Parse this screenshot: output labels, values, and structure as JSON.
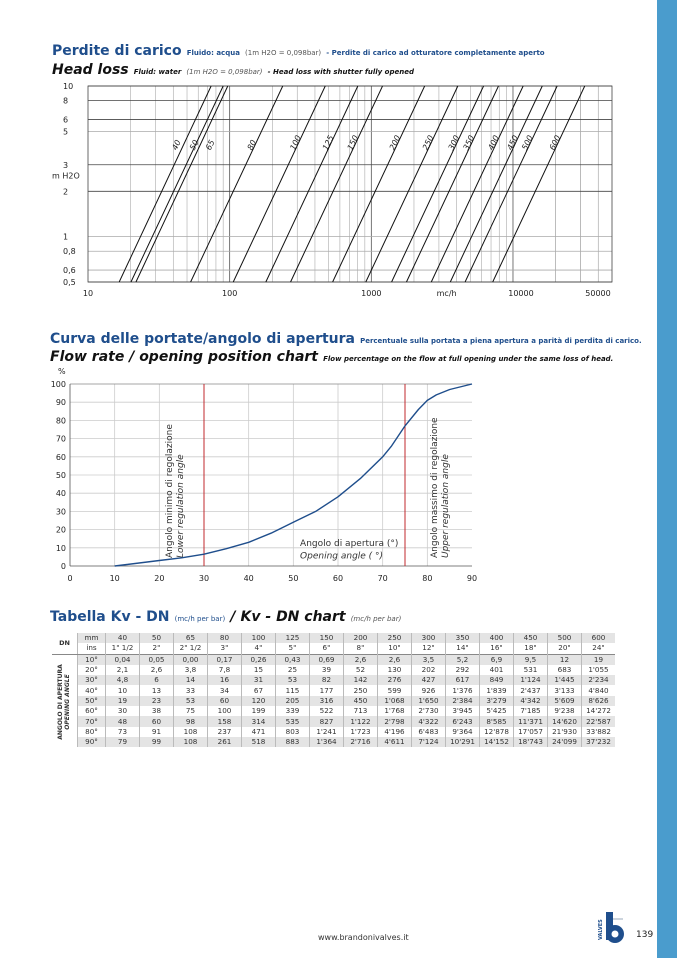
{
  "head_loss": {
    "title_it": "Perdite di carico",
    "sub_it_1": "Fluido: acqua",
    "sub_it_2": "(1m H2O = 0,098bar)",
    "sub_it_3": "- Perdite di carico ad otturatore completamente aperto",
    "title_en": "Head loss",
    "sub_en_1": "Fluid: water",
    "sub_en_2": "(1m H2O = 0,098bar)",
    "sub_en_3": "- Head loss with shutter fully opened"
  },
  "flow_chart": {
    "title_it": "Curva delle portate/angolo di apertura",
    "sub_it": "Percentuale sulla portata a piena apertura a parità di perdita di carico.",
    "title_en": "Flow rate / opening position chart",
    "sub_en": "Flow percentage on the flow at full opening under the same loss of head."
  },
  "chart_data": [
    {
      "type": "line",
      "title": "Head loss",
      "xlabel": "mc/h",
      "ylabel": "m H2O",
      "xscale": "log",
      "yscale": "log",
      "xlim": [
        10,
        50000
      ],
      "ylim": [
        0.5,
        10
      ],
      "x_ticks": [
        "10",
        "100",
        "1000",
        "10000",
        "50000"
      ],
      "y_ticks": [
        "10",
        "8",
        "6",
        "5",
        "3",
        "2",
        "1",
        "0,8",
        "0,6",
        "0,5"
      ],
      "y_tick_values": [
        10,
        8,
        6,
        5,
        3,
        2,
        1,
        0.8,
        0.6,
        0.5
      ],
      "grid": true,
      "series": [
        {
          "name": "40",
          "flow_at_0_5": 16.6,
          "flow_at_10": 74
        },
        {
          "name": "50",
          "flow_at_0_5": 20.1,
          "flow_at_10": 90
        },
        {
          "name": "65",
          "flow_at_0_5": 21.8,
          "flow_at_10": 97
        },
        {
          "name": "80",
          "flow_at_0_5": 53,
          "flow_at_10": 237
        },
        {
          "name": "100",
          "flow_at_0_5": 106,
          "flow_at_10": 473
        },
        {
          "name": "125",
          "flow_at_0_5": 180,
          "flow_at_10": 803
        },
        {
          "name": "150",
          "flow_at_0_5": 269,
          "flow_at_10": 1200
        },
        {
          "name": "200",
          "flow_at_0_5": 533,
          "flow_at_10": 2380
        },
        {
          "name": "250",
          "flow_at_0_5": 914,
          "flow_at_10": 4080
        },
        {
          "name": "300",
          "flow_at_0_5": 1390,
          "flow_at_10": 6200
        },
        {
          "name": "350",
          "flow_at_0_5": 1770,
          "flow_at_10": 7900
        },
        {
          "name": "400",
          "flow_at_0_5": 2650,
          "flow_at_10": 11800
        },
        {
          "name": "450",
          "flow_at_0_5": 3610,
          "flow_at_10": 16100
        },
        {
          "name": "500",
          "flow_at_0_5": 4590,
          "flow_at_10": 20500
        },
        {
          "name": "600",
          "flow_at_0_5": 7190,
          "flow_at_10": 32100
        }
      ]
    },
    {
      "type": "line",
      "title": "Flow rate / opening position chart",
      "ylabel": "%",
      "xlim": [
        0,
        90
      ],
      "ylim": [
        0,
        100
      ],
      "x_ticks": [
        0,
        10,
        20,
        30,
        40,
        50,
        60,
        70,
        80,
        90
      ],
      "y_ticks": [
        0,
        10,
        20,
        30,
        40,
        50,
        60,
        70,
        80,
        90,
        100
      ],
      "grid": true,
      "x": [
        10,
        20,
        25,
        30,
        35,
        40,
        45,
        50,
        55,
        60,
        65,
        70,
        72,
        75,
        78,
        80,
        82,
        85,
        90
      ],
      "y": [
        0,
        3,
        4.5,
        6.5,
        9.5,
        13,
        18,
        24,
        30,
        38,
        48,
        60,
        66,
        77,
        86,
        91,
        94,
        97,
        100
      ],
      "line_color": "#1f4e8c",
      "markers": [
        {
          "x": 30,
          "label_it": "Angolo minimo di regolazione",
          "label_en": "Lower regulation angle",
          "color": "#c0282d"
        },
        {
          "x": 75,
          "label_it": "Angolo massimo di regolazione",
          "label_en": "Upper regulation angle",
          "color": "#c0282d"
        }
      ],
      "axis_note_it": "Angolo di apertura (°)",
      "axis_note_en": "Opening angle ( °)"
    }
  ],
  "kv_table": {
    "title_it": "Tabella Kv - DN",
    "unit_it": "(mc/h per bar)",
    "slash": "/",
    "title_en": "Kv - DN chart",
    "unit_en": "(mc/h per bar)",
    "dn_label": "DN",
    "mm_label": "mm",
    "ins_label": "ins",
    "angle_label_it": "ANGOLO DI APERTURA",
    "angle_label_en": "OPENING ANGLE",
    "mm": [
      "40",
      "50",
      "65",
      "80",
      "100",
      "125",
      "150",
      "200",
      "250",
      "300",
      "350",
      "400",
      "450",
      "500",
      "600"
    ],
    "ins": [
      "1\" 1/2",
      "2\"",
      "2\" 1/2",
      "3\"",
      "4\"",
      "5\"",
      "6\"",
      "8\"",
      "10\"",
      "12\"",
      "14\"",
      "16\"",
      "18\"",
      "20\"",
      "24\""
    ],
    "rows": [
      {
        "angle": "10°",
        "values": [
          "0,04",
          "0,05",
          "0,00",
          "0,17",
          "0,26",
          "0,43",
          "0,69",
          "2,6",
          "2,6",
          "3,5",
          "5,2",
          "6,9",
          "9,5",
          "12",
          "19"
        ]
      },
      {
        "angle": "20°",
        "values": [
          "2,1",
          "2,6",
          "3,8",
          "7,8",
          "15",
          "25",
          "39",
          "52",
          "130",
          "202",
          "292",
          "401",
          "531",
          "683",
          "1'055"
        ]
      },
      {
        "angle": "30°",
        "values": [
          "4,8",
          "6",
          "14",
          "16",
          "31",
          "53",
          "82",
          "142",
          "276",
          "427",
          "617",
          "849",
          "1'124",
          "1'445",
          "2'234"
        ]
      },
      {
        "angle": "40°",
        "values": [
          "10",
          "13",
          "33",
          "34",
          "67",
          "115",
          "177",
          "250",
          "599",
          "926",
          "1'376",
          "1'839",
          "2'437",
          "3'133",
          "4'840"
        ]
      },
      {
        "angle": "50°",
        "values": [
          "19",
          "23",
          "53",
          "60",
          "120",
          "205",
          "316",
          "450",
          "1'068",
          "1'650",
          "2'384",
          "3'279",
          "4'342",
          "5'609",
          "8'626"
        ]
      },
      {
        "angle": "60°",
        "values": [
          "30",
          "38",
          "75",
          "100",
          "199",
          "339",
          "522",
          "713",
          "1'768",
          "2'730",
          "3'945",
          "5'425",
          "7'185",
          "9'238",
          "14'272"
        ]
      },
      {
        "angle": "70°",
        "values": [
          "48",
          "60",
          "98",
          "158",
          "314",
          "535",
          "827",
          "1'122",
          "2'798",
          "4'322",
          "6'243",
          "8'585",
          "11'371",
          "14'620",
          "22'587"
        ]
      },
      {
        "angle": "80°",
        "values": [
          "73",
          "91",
          "108",
          "237",
          "471",
          "803",
          "1'241",
          "1'723",
          "4'196",
          "6'483",
          "9'364",
          "12'878",
          "17'057",
          "21'930",
          "33'882"
        ]
      },
      {
        "angle": "90°",
        "values": [
          "79",
          "99",
          "108",
          "261",
          "518",
          "883",
          "1'364",
          "2'716",
          "4'611",
          "7'124",
          "10'291",
          "14'152",
          "18'743",
          "24'099",
          "37'232"
        ]
      }
    ]
  },
  "footer": {
    "url": "www.brandonivalves.it",
    "logo_text": "VALVES",
    "page_number": "139"
  },
  "colors": {
    "brand_blue": "#1f4e8c",
    "side_bar": "#4a9ccd",
    "marker_red": "#c0282d"
  }
}
